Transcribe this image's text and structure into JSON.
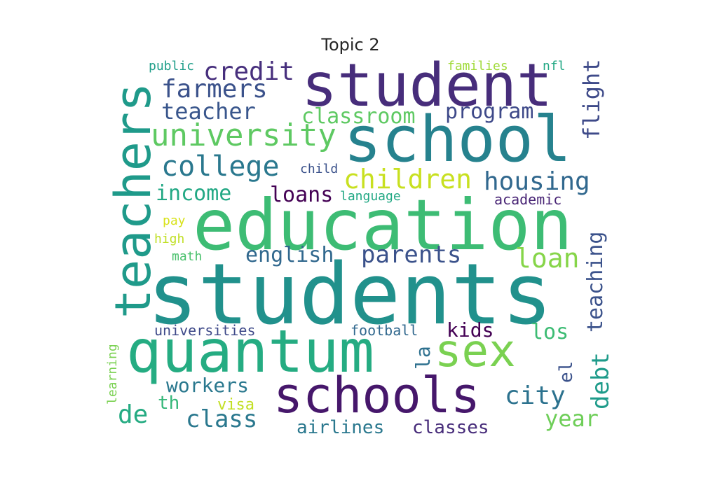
{
  "title": "Topic 2",
  "words": [
    {
      "text": "students",
      "color": "#21918c"
    },
    {
      "text": "education",
      "color": "#3dbc74"
    },
    {
      "text": "school",
      "color": "#26828e"
    },
    {
      "text": "student",
      "color": "#472d7b"
    },
    {
      "text": "quantum",
      "color": "#25ac82"
    },
    {
      "text": "schools",
      "color": "#46176b"
    },
    {
      "text": "teachers",
      "color": "#1f9a8a"
    },
    {
      "text": "sex",
      "color": "#7ad151"
    },
    {
      "text": "university",
      "color": "#5ec962"
    },
    {
      "text": "college",
      "color": "#2a788e"
    },
    {
      "text": "farmers",
      "color": "#3b528b"
    },
    {
      "text": "children",
      "color": "#c8e020"
    },
    {
      "text": "housing",
      "color": "#31688e"
    },
    {
      "text": "credit",
      "color": "#472f7d"
    },
    {
      "text": "teacher",
      "color": "#39568c"
    },
    {
      "text": "classroom",
      "color": "#5ec962"
    },
    {
      "text": "program",
      "color": "#3e4989"
    },
    {
      "text": "parents",
      "color": "#3b528b"
    },
    {
      "text": "income",
      "color": "#22a884"
    },
    {
      "text": "loans",
      "color": "#440154"
    },
    {
      "text": "loan",
      "color": "#86d549"
    },
    {
      "text": "english",
      "color": "#31688e"
    },
    {
      "text": "teaching",
      "color": "#3b528b"
    },
    {
      "text": "debt",
      "color": "#1e9b8a"
    },
    {
      "text": "flight",
      "color": "#3e4a89"
    },
    {
      "text": "city",
      "color": "#2c728e"
    },
    {
      "text": "class",
      "color": "#2a788e"
    },
    {
      "text": "year",
      "color": "#6ece58"
    },
    {
      "text": "workers",
      "color": "#2a788e"
    },
    {
      "text": "los",
      "color": "#3dbc74"
    },
    {
      "text": "kids",
      "color": "#440154"
    },
    {
      "text": "la",
      "color": "#2d708e"
    },
    {
      "text": "el",
      "color": "#3b528b"
    },
    {
      "text": "de",
      "color": "#25ab82"
    },
    {
      "text": "airlines",
      "color": "#2a788e"
    },
    {
      "text": "classes",
      "color": "#472c7a"
    },
    {
      "text": "th",
      "color": "#35b779"
    },
    {
      "text": "visa",
      "color": "#c2df23"
    },
    {
      "text": "universities",
      "color": "#3e4989"
    },
    {
      "text": "football",
      "color": "#31688e"
    },
    {
      "text": "academic",
      "color": "#482475"
    },
    {
      "text": "child",
      "color": "#3b528b"
    },
    {
      "text": "language",
      "color": "#22a884"
    },
    {
      "text": "public",
      "color": "#1f9e89"
    },
    {
      "text": "families",
      "color": "#a0da39"
    },
    {
      "text": "nfl",
      "color": "#22a884"
    },
    {
      "text": "pay",
      "color": "#d8e219"
    },
    {
      "text": "high",
      "color": "#c0df25"
    },
    {
      "text": "math",
      "color": "#4ac16d"
    },
    {
      "text": "learning",
      "color": "#7ad151"
    }
  ]
}
